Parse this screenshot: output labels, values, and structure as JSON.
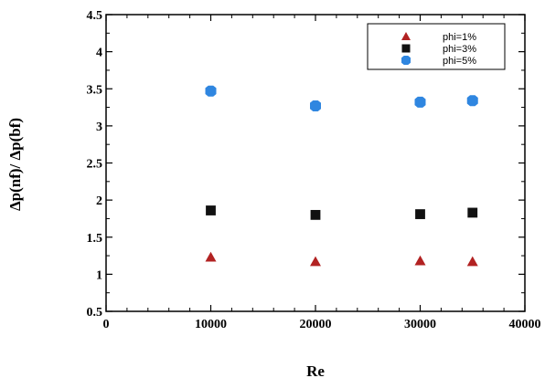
{
  "chart_data": {
    "type": "scatter",
    "xlabel": "Re",
    "ylabel": "Δp(nf)/ Δp(bf)",
    "xlim": [
      0,
      40000
    ],
    "ylim": [
      0.5,
      4.5
    ],
    "x_ticks": [
      0,
      10000,
      20000,
      30000,
      40000
    ],
    "x_tick_labels": [
      "0",
      "10000",
      "20000",
      "30000",
      "40000"
    ],
    "y_ticks": [
      0.5,
      1,
      1.5,
      2,
      2.5,
      3,
      3.5,
      4,
      4.5
    ],
    "y_tick_labels": [
      "0.5",
      "1",
      "1.5",
      "2",
      "2.5",
      "3",
      "3.5",
      "4",
      "4.5"
    ],
    "grid": false,
    "legend_position": "top-right",
    "series": [
      {
        "name": "phi=1%",
        "marker": "triangle",
        "color": "#b22222",
        "x": [
          10000,
          20000,
          30000,
          35000
        ],
        "y": [
          1.23,
          1.17,
          1.18,
          1.17
        ]
      },
      {
        "name": "phi=3%",
        "marker": "square",
        "color": "#111111",
        "x": [
          10000,
          20000,
          30000,
          35000
        ],
        "y": [
          1.86,
          1.8,
          1.81,
          1.83
        ]
      },
      {
        "name": "phi=5%",
        "marker": "diamond",
        "color": "#2f86e0",
        "x": [
          10000,
          20000,
          30000,
          35000
        ],
        "y": [
          3.47,
          3.27,
          3.32,
          3.34
        ]
      }
    ]
  }
}
